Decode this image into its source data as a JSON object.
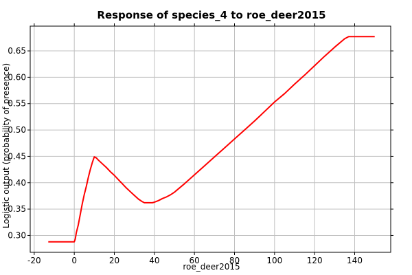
{
  "chart_data": {
    "type": "line",
    "title": "Response of species_4 to roe_deer2015",
    "xlabel": "roe_deer2015",
    "ylabel": "Logistic output (probability of presence)",
    "xlim": [
      -22,
      158
    ],
    "ylim": [
      0.268,
      0.697
    ],
    "xticks": [
      -20,
      0,
      20,
      40,
      60,
      80,
      100,
      120,
      140
    ],
    "xtick_labels": [
      "-20",
      "0",
      "20",
      "40",
      "60",
      "80",
      "100",
      "120",
      "140"
    ],
    "yticks": [
      0.3,
      0.35,
      0.4,
      0.45,
      0.5,
      0.55,
      0.6,
      0.65
    ],
    "ytick_labels": [
      "0.30",
      "0.35",
      "0.40",
      "0.45",
      "0.50",
      "0.55",
      "0.60",
      "0.65"
    ],
    "grid": true,
    "series": [
      {
        "color": "#ff0000",
        "x": [
          -13,
          0,
          0.5,
          1,
          2,
          3,
          4,
          5,
          6,
          7,
          8,
          9,
          10,
          11,
          12,
          14,
          16,
          18,
          20,
          22,
          24,
          26,
          28,
          30,
          32,
          34,
          35,
          36,
          38,
          39,
          40,
          42,
          44,
          46,
          48,
          50,
          55,
          60,
          65,
          70,
          75,
          80,
          85,
          90,
          95,
          100,
          105,
          110,
          115,
          120,
          125,
          130,
          135,
          137,
          140,
          145,
          150
        ],
        "y": [
          0.288,
          0.288,
          0.293,
          0.305,
          0.32,
          0.34,
          0.36,
          0.378,
          0.393,
          0.41,
          0.425,
          0.438,
          0.449,
          0.447,
          0.443,
          0.436,
          0.429,
          0.421,
          0.414,
          0.406,
          0.398,
          0.39,
          0.383,
          0.376,
          0.369,
          0.364,
          0.362,
          0.362,
          0.362,
          0.362,
          0.363,
          0.366,
          0.37,
          0.373,
          0.377,
          0.382,
          0.398,
          0.415,
          0.432,
          0.449,
          0.466,
          0.483,
          0.5,
          0.517,
          0.535,
          0.553,
          0.569,
          0.587,
          0.604,
          0.622,
          0.64,
          0.657,
          0.673,
          0.677,
          0.677,
          0.677,
          0.677
        ]
      }
    ]
  }
}
